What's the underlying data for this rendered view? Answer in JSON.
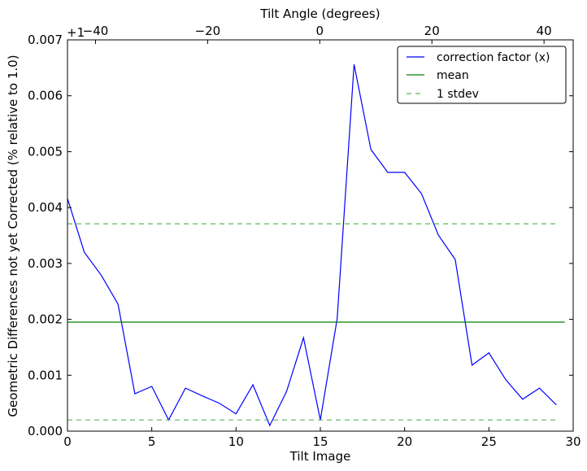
{
  "chart_data": {
    "type": "line",
    "title": "",
    "xlabel": "Tilt Image",
    "ylabel": "Geometric Differences not yet Corrected (% relative to 1.0)",
    "top_xlabel": "Tilt Angle (degrees)",
    "top_offset_text": "+1",
    "xlim": [
      0,
      30
    ],
    "ylim": [
      0,
      0.007
    ],
    "top_xlim": [
      -45,
      45.2
    ],
    "xticks": [
      0,
      5,
      10,
      15,
      20,
      25,
      30
    ],
    "xtick_labels": [
      "0",
      "5",
      "10",
      "15",
      "20",
      "25",
      "30"
    ],
    "yticks": [
      0,
      0.001,
      0.002,
      0.003,
      0.004,
      0.005,
      0.006,
      0.007
    ],
    "ytick_labels": [
      "0.000",
      "0.001",
      "0.002",
      "0.003",
      "0.004",
      "0.005",
      "0.006",
      "0.007"
    ],
    "top_xticks": [
      -40,
      -20,
      0,
      20,
      40
    ],
    "top_xtick_labels": [
      "−40",
      "−20",
      "0",
      "20",
      "40"
    ],
    "grid": false,
    "legend_position": "top-right",
    "series": [
      {
        "name": "correction factor (x)",
        "color": "#0000ff",
        "style": "solid",
        "x": [
          0,
          1,
          2,
          3,
          4,
          5,
          6,
          7,
          8,
          9,
          10,
          11,
          12,
          13,
          14,
          15,
          16,
          17,
          18,
          19,
          20,
          21,
          22,
          23,
          24,
          25,
          26,
          27,
          28,
          29
        ],
        "values": [
          0.00416,
          0.0032,
          0.00279,
          0.00227,
          0.00067,
          0.0008,
          0.0002,
          0.00077,
          0.00063,
          0.0005,
          0.00031,
          0.00083,
          0.0001,
          0.00071,
          0.00167,
          0.0002,
          0.00201,
          0.00656,
          0.00504,
          0.00463,
          0.00463,
          0.00425,
          0.00351,
          0.00307,
          0.00118,
          0.0014,
          0.00092,
          0.00057,
          0.00077,
          0.00047
        ]
      },
      {
        "name": "mean",
        "color": "#008000",
        "style": "solid",
        "x": [
          0,
          29.5
        ],
        "values": [
          0.00195,
          0.00195
        ]
      },
      {
        "name": "1 stdev",
        "color": "#5cb85c",
        "style": "dashed",
        "x": [
          0,
          29
        ],
        "values": [
          0.00371,
          0.00371
        ]
      },
      {
        "name": "1 stdev (lower)",
        "color": "#5cb85c",
        "style": "dashed",
        "x": [
          0,
          29
        ],
        "values": [
          0.0002,
          0.0002
        ]
      }
    ],
    "legend": [
      "correction factor (x)",
      "mean",
      "1 stdev"
    ]
  }
}
